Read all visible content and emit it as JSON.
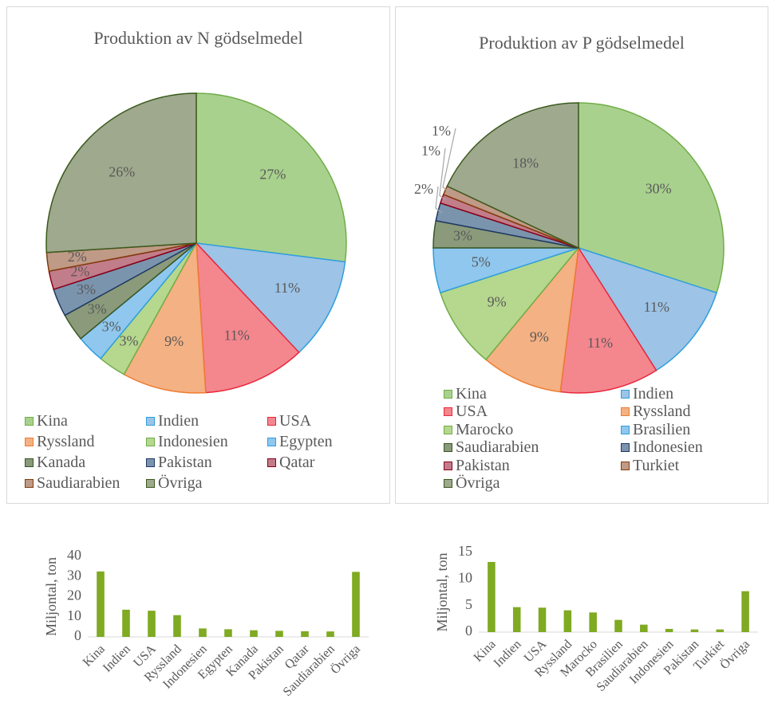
{
  "chart_data": [
    {
      "type": "pie",
      "title": "Produktion av N gödselmedel",
      "legend_position": "bottom",
      "slices": [
        {
          "name": "Kina",
          "value": 27,
          "label": "27%",
          "fill": "#a9d18e",
          "stroke": "#70ad47"
        },
        {
          "name": "Indien",
          "value": 11,
          "label": "11%",
          "fill": "#9dc3e6",
          "stroke": "#2e9fdf"
        },
        {
          "name": "USA",
          "value": 11,
          "label": "11%",
          "fill": "#f4868e",
          "stroke": "#e8283b"
        },
        {
          "name": "Ryssland",
          "value": 9,
          "label": "9%",
          "fill": "#f4b183",
          "stroke": "#ed7d31"
        },
        {
          "name": "Indonesien",
          "value": 3,
          "label": "3%",
          "fill": "#b5d78e",
          "stroke": "#70ad47"
        },
        {
          "name": "Egypten",
          "value": 3,
          "label": "3%",
          "fill": "#8fc7ee",
          "stroke": "#2e9fdf"
        },
        {
          "name": "Kanada",
          "value": 3,
          "label": "3%",
          "fill": "#8a9a7a",
          "stroke": "#375623"
        },
        {
          "name": "Pakistan",
          "value": 3,
          "label": "3%",
          "fill": "#7b94ad",
          "stroke": "#1f3864"
        },
        {
          "name": "Qatar",
          "value": 2,
          "label": "2%",
          "fill": "#c17d8a",
          "stroke": "#8b0019"
        },
        {
          "name": "Saudiarabien",
          "value": 2,
          "label": "2%",
          "fill": "#bf9a86",
          "stroke": "#843c0c"
        },
        {
          "name": "Övriga",
          "value": 26,
          "label": "26%",
          "fill": "#9fa98e",
          "stroke": "#3a5a1c"
        }
      ]
    },
    {
      "type": "pie",
      "title": "Produktion av P gödselmedel",
      "legend_position": "bottom",
      "slices": [
        {
          "name": "Kina",
          "value": 30,
          "label": "30%",
          "fill": "#a9d18e",
          "stroke": "#70ad47"
        },
        {
          "name": "Indien",
          "value": 11,
          "label": "11%",
          "fill": "#9dc3e6",
          "stroke": "#2e9fdf"
        },
        {
          "name": "USA",
          "value": 11,
          "label": "11%",
          "fill": "#f4868e",
          "stroke": "#e8283b"
        },
        {
          "name": "Ryssland",
          "value": 9,
          "label": "9%",
          "fill": "#f4b183",
          "stroke": "#ed7d31"
        },
        {
          "name": "Marocko",
          "value": 9,
          "label": "9%",
          "fill": "#b5d78e",
          "stroke": "#70ad47"
        },
        {
          "name": "Brasilien",
          "value": 5,
          "label": "5%",
          "fill": "#8fc7ee",
          "stroke": "#2e9fdf"
        },
        {
          "name": "Saudiarabien",
          "value": 3,
          "label": "3%",
          "fill": "#8a9a7a",
          "stroke": "#375623"
        },
        {
          "name": "Indonesien",
          "value": 2,
          "label": "2%",
          "fill": "#7b94ad",
          "stroke": "#1f3864"
        },
        {
          "name": "Pakistan",
          "value": 1,
          "label": "1%",
          "fill": "#c17d8a",
          "stroke": "#8b0019"
        },
        {
          "name": "Turkiet",
          "value": 1,
          "label": "1%",
          "fill": "#bf9a86",
          "stroke": "#843c0c"
        },
        {
          "name": "Övriga",
          "value": 18,
          "label": "18%",
          "fill": "#9fa98e",
          "stroke": "#3a5a1c"
        }
      ]
    },
    {
      "type": "bar",
      "categories": [
        "Kina",
        "Indien",
        "USA",
        "Ryssland",
        "Indonesien",
        "Egypten",
        "Kanada",
        "Pakistan",
        "Qatar",
        "Saudiarabien",
        "Övriga"
      ],
      "values": [
        32.5,
        13.5,
        13,
        10.8,
        4.2,
        3.8,
        3.3,
        3,
        2.8,
        2.7,
        32.3
      ],
      "ylabel": "Miljontal, ton",
      "ylim": [
        0,
        40
      ],
      "yticks": [
        "0",
        "10",
        "20",
        "30",
        "40"
      ],
      "bar_color": "#7faa22",
      "grid": false
    },
    {
      "type": "bar",
      "categories": [
        "Kina",
        "Indien",
        "USA",
        "Ryssland",
        "Marocko",
        "Brasilien",
        "Saudiarabien",
        "Indonesien",
        "Pakistan",
        "Turkiet",
        "Övriga"
      ],
      "values": [
        13.2,
        4.7,
        4.6,
        4.1,
        3.7,
        2.3,
        1.4,
        0.6,
        0.5,
        0.5,
        7.7
      ],
      "ylabel": "Miljontal, ton",
      "ylim": [
        0,
        15
      ],
      "yticks": [
        "0",
        "5",
        "10",
        "15"
      ],
      "bar_color": "#7faa22",
      "grid": false
    }
  ]
}
